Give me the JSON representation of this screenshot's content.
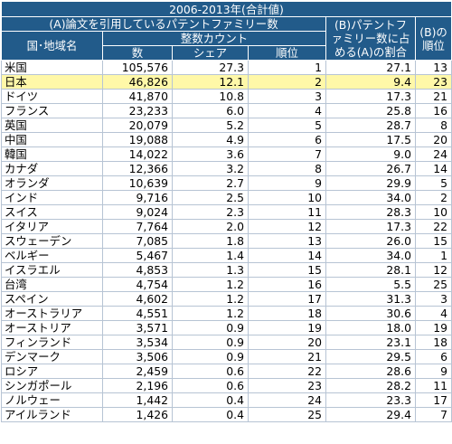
{
  "table": {
    "title": "2006-2013年(合計値)",
    "header": {
      "group_a": "(A)論文を引用しているパテントファミリー数",
      "country": "国･地域名",
      "integer_count": "整数カウント",
      "count": "数",
      "share": "シェア",
      "rank": "順位",
      "ratio_b": "(B)パテントファミリー数に占める(A)の割合",
      "rank_b": "(B)の順位"
    },
    "rows": [
      {
        "country": "米国",
        "count": "105,576",
        "share": "27.3",
        "rank": "1",
        "ratio": "27.1",
        "rank_b": "13",
        "highlight": false
      },
      {
        "country": "日本",
        "count": "46,826",
        "share": "12.1",
        "rank": "2",
        "ratio": "9.4",
        "rank_b": "23",
        "highlight": true
      },
      {
        "country": "ドイツ",
        "count": "41,870",
        "share": "10.8",
        "rank": "3",
        "ratio": "17.3",
        "rank_b": "21",
        "highlight": false
      },
      {
        "country": "フランス",
        "count": "23,233",
        "share": "6.0",
        "rank": "4",
        "ratio": "25.8",
        "rank_b": "16",
        "highlight": false
      },
      {
        "country": "英国",
        "count": "20,079",
        "share": "5.2",
        "rank": "5",
        "ratio": "28.7",
        "rank_b": "8",
        "highlight": false
      },
      {
        "country": "中国",
        "count": "19,088",
        "share": "4.9",
        "rank": "6",
        "ratio": "17.5",
        "rank_b": "20",
        "highlight": false
      },
      {
        "country": "韓国",
        "count": "14,022",
        "share": "3.6",
        "rank": "7",
        "ratio": "9.0",
        "rank_b": "24",
        "highlight": false
      },
      {
        "country": "カナダ",
        "count": "12,366",
        "share": "3.2",
        "rank": "8",
        "ratio": "26.7",
        "rank_b": "14",
        "highlight": false
      },
      {
        "country": "オランダ",
        "count": "10,639",
        "share": "2.7",
        "rank": "9",
        "ratio": "29.9",
        "rank_b": "5",
        "highlight": false
      },
      {
        "country": "インド",
        "count": "9,716",
        "share": "2.5",
        "rank": "10",
        "ratio": "34.0",
        "rank_b": "2",
        "highlight": false
      },
      {
        "country": "スイス",
        "count": "9,024",
        "share": "2.3",
        "rank": "11",
        "ratio": "28.3",
        "rank_b": "10",
        "highlight": false
      },
      {
        "country": "イタリア",
        "count": "7,764",
        "share": "2.0",
        "rank": "12",
        "ratio": "17.3",
        "rank_b": "22",
        "highlight": false
      },
      {
        "country": "スウェーデン",
        "count": "7,085",
        "share": "1.8",
        "rank": "13",
        "ratio": "26.0",
        "rank_b": "15",
        "highlight": false
      },
      {
        "country": "ベルギー",
        "count": "5,467",
        "share": "1.4",
        "rank": "14",
        "ratio": "34.0",
        "rank_b": "1",
        "highlight": false
      },
      {
        "country": "イスラエル",
        "count": "4,853",
        "share": "1.3",
        "rank": "15",
        "ratio": "28.1",
        "rank_b": "12",
        "highlight": false
      },
      {
        "country": "台湾",
        "count": "4,754",
        "share": "1.2",
        "rank": "16",
        "ratio": "5.5",
        "rank_b": "25",
        "highlight": false
      },
      {
        "country": "スペイン",
        "count": "4,602",
        "share": "1.2",
        "rank": "17",
        "ratio": "31.3",
        "rank_b": "3",
        "highlight": false
      },
      {
        "country": "オーストラリア",
        "count": "4,551",
        "share": "1.2",
        "rank": "18",
        "ratio": "30.6",
        "rank_b": "4",
        "highlight": false
      },
      {
        "country": "オーストリア",
        "count": "3,571",
        "share": "0.9",
        "rank": "19",
        "ratio": "18.0",
        "rank_b": "19",
        "highlight": false
      },
      {
        "country": "フィンランド",
        "count": "3,534",
        "share": "0.9",
        "rank": "20",
        "ratio": "23.1",
        "rank_b": "18",
        "highlight": false
      },
      {
        "country": "デンマーク",
        "count": "3,506",
        "share": "0.9",
        "rank": "21",
        "ratio": "29.5",
        "rank_b": "6",
        "highlight": false
      },
      {
        "country": "ロシア",
        "count": "2,459",
        "share": "0.6",
        "rank": "22",
        "ratio": "28.6",
        "rank_b": "9",
        "highlight": false
      },
      {
        "country": "シンガポール",
        "count": "2,196",
        "share": "0.6",
        "rank": "23",
        "ratio": "28.2",
        "rank_b": "11",
        "highlight": false
      },
      {
        "country": "ノルウェー",
        "count": "1,442",
        "share": "0.4",
        "rank": "24",
        "ratio": "23.3",
        "rank_b": "17",
        "highlight": false
      },
      {
        "country": "アイルランド",
        "count": "1,426",
        "share": "0.4",
        "rank": "25",
        "ratio": "29.4",
        "rank_b": "7",
        "highlight": false
      }
    ]
  }
}
